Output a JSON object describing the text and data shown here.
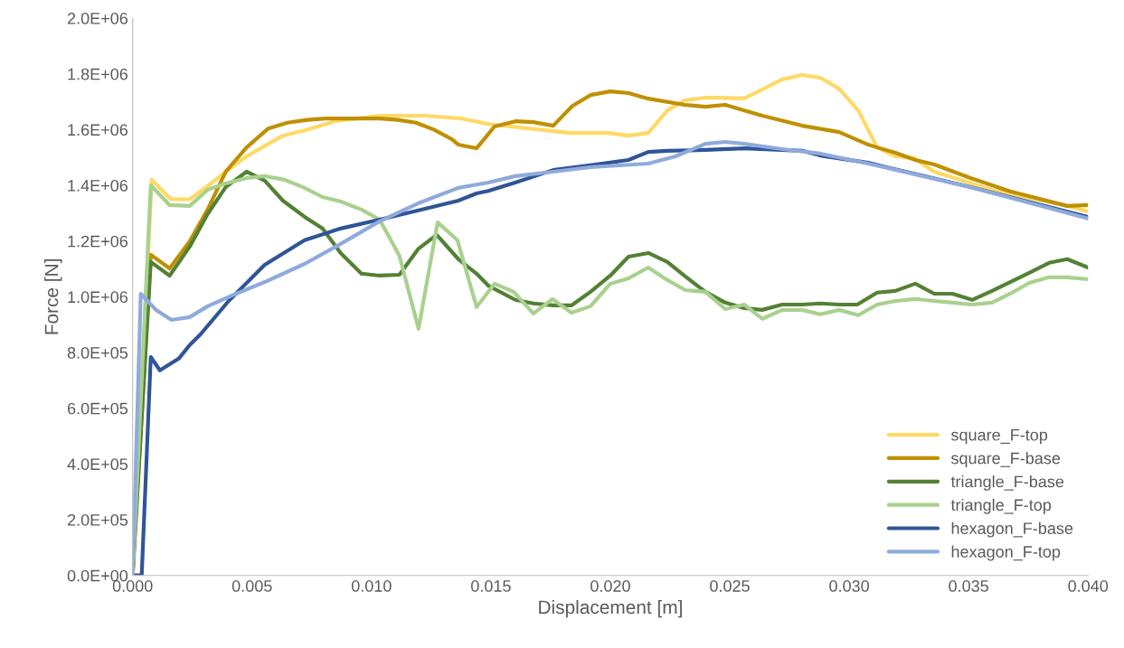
{
  "chart_data": {
    "type": "line",
    "xlabel": "Displacement [m]",
    "ylabel": "Force [N]",
    "xlim": [
      0,
      0.04
    ],
    "ylim": [
      0,
      2000000
    ],
    "xticks": [
      {
        "value": 0,
        "label": "0.000"
      },
      {
        "value": 0.005,
        "label": "0.005"
      },
      {
        "value": 0.01,
        "label": "0.010"
      },
      {
        "value": 0.015,
        "label": "0.015"
      },
      {
        "value": 0.02,
        "label": "0.020"
      },
      {
        "value": 0.025,
        "label": "0.025"
      },
      {
        "value": 0.03,
        "label": "0.030"
      },
      {
        "value": 0.035,
        "label": "0.035"
      },
      {
        "value": 0.04,
        "label": "0.040"
      }
    ],
    "yticks": [
      {
        "value": 0,
        "label": "0.0E+00"
      },
      {
        "value": 200000,
        "label": "2.0E+05"
      },
      {
        "value": 400000,
        "label": "4.0E+05"
      },
      {
        "value": 600000,
        "label": "6.0E+05"
      },
      {
        "value": 800000,
        "label": "8.0E+05"
      },
      {
        "value": 1000000,
        "label": "1.0E+06"
      },
      {
        "value": 1200000,
        "label": "1.2E+06"
      },
      {
        "value": 1400000,
        "label": "1.4E+06"
      },
      {
        "value": 1600000,
        "label": "1.6E+06"
      },
      {
        "value": 1800000,
        "label": "1.8E+06"
      },
      {
        "value": 2000000,
        "label": "2.0E+06"
      }
    ],
    "grid": false,
    "legend": "bottom right",
    "marker": "none",
    "line_style": "solid",
    "series": [
      {
        "name": "square_F-top",
        "color": "#ffd966",
        "x": [
          0,
          0.0008,
          0.0016,
          0.0024,
          0.00318,
          0.0039,
          0.00477,
          0.00629,
          0.00731,
          0.00845,
          0.01034,
          0.01223,
          0.01375,
          0.01489,
          0.0183,
          0.01992,
          0.02076,
          0.02159,
          0.02239,
          0.02311,
          0.02398,
          0.02561,
          0.02636,
          0.0272,
          0.02803,
          0.02879,
          0.02958,
          0.03038,
          0.03117,
          0.03193,
          0.03269,
          0.03356,
          0.03598,
          0.03913,
          0.04
        ],
        "values": [
          0,
          1420000,
          1350000,
          1350000,
          1400000,
          1449000,
          1504000,
          1578000,
          1600000,
          1630000,
          1650000,
          1650000,
          1640000,
          1620000,
          1588000,
          1588000,
          1578000,
          1588000,
          1669000,
          1705000,
          1715000,
          1712000,
          1744000,
          1780000,
          1796000,
          1786000,
          1747000,
          1669000,
          1536000,
          1504000,
          1498000,
          1449000,
          1384000,
          1326000,
          1306000
        ]
      },
      {
        "name": "square_F-base",
        "color": "#bf9000",
        "x": [
          0,
          0.00076,
          0.00155,
          0.00239,
          0.00314,
          0.0039,
          0.00477,
          0.00568,
          0.00648,
          0.00731,
          0.00807,
          0.01034,
          0.0111,
          0.01186,
          0.01261,
          0.01337,
          0.01364,
          0.0144,
          0.01515,
          0.01602,
          0.01678,
          0.01761,
          0.01841,
          0.01917,
          0.02,
          0.02076,
          0.02159,
          0.02311,
          0.02398,
          0.02481,
          0.02561,
          0.02636,
          0.02803,
          0.02958,
          0.0308,
          0.03117,
          0.03193,
          0.03277,
          0.03356,
          0.03508,
          0.03674,
          0.03913,
          0.04
        ],
        "values": [
          0,
          1151000,
          1102000,
          1199000,
          1313000,
          1449000,
          1536000,
          1604000,
          1625000,
          1635000,
          1640000,
          1640000,
          1635000,
          1625000,
          1600000,
          1565000,
          1546000,
          1533000,
          1611000,
          1630000,
          1627000,
          1614000,
          1685000,
          1724000,
          1737000,
          1731000,
          1711000,
          1689000,
          1682000,
          1689000,
          1669000,
          1650000,
          1614000,
          1591000,
          1546000,
          1536000,
          1517000,
          1491000,
          1475000,
          1426000,
          1378000,
          1326000,
          1329000
        ]
      },
      {
        "name": "triangle_F-base",
        "color": "#538135",
        "x": [
          0,
          0.00076,
          0.00155,
          0.00239,
          0.00314,
          0.0039,
          0.00477,
          0.00553,
          0.00629,
          0.0072,
          0.00795,
          0.00871,
          0.00958,
          0.01034,
          0.01117,
          0.01197,
          0.01273,
          0.01364,
          0.0144,
          0.01489,
          0.01602,
          0.01678,
          0.01761,
          0.01837,
          0.01917,
          0.02,
          0.02076,
          0.02159,
          0.02239,
          0.02314,
          0.02398,
          0.02481,
          0.02561,
          0.02636,
          0.0272,
          0.02803,
          0.02879,
          0.02958,
          0.03034,
          0.03117,
          0.03193,
          0.03277,
          0.03356,
          0.03432,
          0.03515,
          0.03598,
          0.03754,
          0.03837,
          0.03913,
          0.04
        ],
        "values": [
          0,
          1125000,
          1076000,
          1180000,
          1297000,
          1394000,
          1449000,
          1417000,
          1345000,
          1287000,
          1245000,
          1157000,
          1083000,
          1076000,
          1079000,
          1173000,
          1222000,
          1135000,
          1083000,
          1040000,
          989000,
          976000,
          969000,
          969000,
          1018000,
          1076000,
          1144000,
          1157000,
          1125000,
          1073000,
          1018000,
          979000,
          959000,
          953000,
          972000,
          972000,
          976000,
          972000,
          972000,
          1015000,
          1021000,
          1047000,
          1011000,
          1011000,
          989000,
          1021000,
          1086000,
          1122000,
          1135000,
          1105000
        ]
      },
      {
        "name": "triangle_F-top",
        "color": "#a9d18e",
        "x": [
          0,
          0.00076,
          0.00155,
          0.00239,
          0.00314,
          0.0039,
          0.00477,
          0.00553,
          0.00636,
          0.0072,
          0.00795,
          0.00871,
          0.00958,
          0.01034,
          0.01117,
          0.01197,
          0.01277,
          0.0136,
          0.0144,
          0.01515,
          0.01595,
          0.01678,
          0.01758,
          0.01837,
          0.01917,
          0.02,
          0.02076,
          0.02159,
          0.02239,
          0.02314,
          0.02398,
          0.02481,
          0.02561,
          0.02636,
          0.0272,
          0.02803,
          0.02879,
          0.02958,
          0.03038,
          0.03117,
          0.03193,
          0.03277,
          0.03356,
          0.03432,
          0.03515,
          0.03598,
          0.03674,
          0.03754,
          0.03837,
          0.03913,
          0.04
        ],
        "values": [
          0,
          1400000,
          1329000,
          1326000,
          1384000,
          1407000,
          1426000,
          1433000,
          1420000,
          1391000,
          1358000,
          1342000,
          1313000,
          1277000,
          1147000,
          885000,
          1267000,
          1203000,
          963000,
          1047000,
          1018000,
          940000,
          992000,
          943000,
          966000,
          1047000,
          1066000,
          1105000,
          1060000,
          1024000,
          1018000,
          956000,
          972000,
          921000,
          953000,
          953000,
          937000,
          953000,
          934000,
          972000,
          985000,
          992000,
          985000,
          979000,
          972000,
          979000,
          1011000,
          1050000,
          1070000,
          1070000,
          1063000
        ]
      },
      {
        "name": "hexagon_F-base",
        "color": "#2f5597",
        "x": [
          0,
          0.00038,
          0.00076,
          0.00114,
          0.00193,
          0.00239,
          0.00284,
          0.00402,
          0.00553,
          0.0072,
          0.00871,
          0.01034,
          0.01197,
          0.01364,
          0.0144,
          0.01489,
          0.01602,
          0.01761,
          0.01917,
          0.02076,
          0.02159,
          0.02239,
          0.02398,
          0.02561,
          0.02803,
          0.02879,
          0.0308,
          0.03155,
          0.03508,
          0.04
        ],
        "values": [
          0,
          0,
          784000,
          736000,
          778000,
          827000,
          865000,
          985000,
          1115000,
          1203000,
          1245000,
          1277000,
          1310000,
          1345000,
          1371000,
          1380000,
          1410000,
          1455000,
          1472000,
          1491000,
          1520000,
          1524000,
          1527000,
          1533000,
          1524000,
          1507000,
          1481000,
          1465000,
          1394000,
          1287000
        ]
      },
      {
        "name": "hexagon_F-top",
        "color": "#8faadc",
        "x": [
          0,
          0.00034,
          0.00098,
          0.00163,
          0.00239,
          0.00314,
          0.00417,
          0.00553,
          0.0072,
          0.00871,
          0.01034,
          0.01197,
          0.01364,
          0.01489,
          0.01602,
          0.01761,
          0.01917,
          0.02159,
          0.02273,
          0.02398,
          0.02481,
          0.02561,
          0.0272,
          0.02879,
          0.0308,
          0.03508,
          0.04
        ],
        "values": [
          0,
          1011000,
          953000,
          917000,
          927000,
          966000,
          1005000,
          1053000,
          1118000,
          1190000,
          1271000,
          1336000,
          1391000,
          1410000,
          1433000,
          1449000,
          1465000,
          1478000,
          1504000,
          1549000,
          1556000,
          1549000,
          1530000,
          1514000,
          1478000,
          1394000,
          1281000
        ]
      }
    ]
  }
}
